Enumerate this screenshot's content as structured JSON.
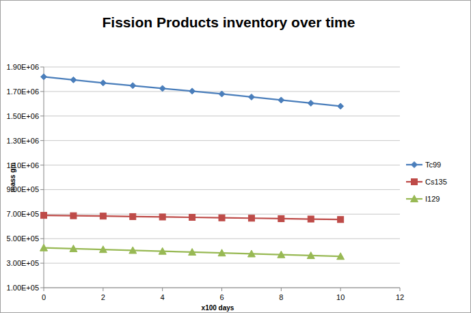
{
  "chart_data": {
    "type": "line",
    "title": "Fission Products inventory over time",
    "x_label": "x100 days",
    "y_label": "mass gm",
    "x": [
      0,
      1,
      2,
      3,
      4,
      5,
      6,
      7,
      8,
      9,
      10
    ],
    "series": [
      {
        "name": "Tc99",
        "color": "#4a7ebb",
        "marker": "diamond",
        "values": [
          1820000,
          1795000,
          1770000,
          1748000,
          1725000,
          1703000,
          1680000,
          1655000,
          1630000,
          1605000,
          1580000
        ]
      },
      {
        "name": "Cs135",
        "color": "#be4b48",
        "marker": "square",
        "values": [
          690000,
          687000,
          684000,
          680000,
          677000,
          674000,
          670000,
          667000,
          663000,
          660000,
          656000
        ]
      },
      {
        "name": "I129",
        "color": "#98b954",
        "marker": "triangle",
        "values": [
          425000,
          418000,
          411000,
          404000,
          397000,
          390000,
          383000,
          376000,
          369000,
          362000,
          355000
        ]
      }
    ],
    "xlim": [
      0,
      12
    ],
    "xticks": [
      0,
      2,
      4,
      6,
      8,
      10,
      12
    ],
    "ylim": [
      100000,
      1900000
    ],
    "yticks": [
      {
        "value": 100000,
        "label": "1.00E+05"
      },
      {
        "value": 300000,
        "label": "3.00E+05"
      },
      {
        "value": 500000,
        "label": "5.00E+05"
      },
      {
        "value": 700000,
        "label": "7.00E+05"
      },
      {
        "value": 900000,
        "label": "9.00E+05"
      },
      {
        "value": 1100000,
        "label": "1.10E+06"
      },
      {
        "value": 1300000,
        "label": "1.30E+06"
      },
      {
        "value": 1500000,
        "label": "1.50E+06"
      },
      {
        "value": 1700000,
        "label": "1.70E+06"
      },
      {
        "value": 1900000,
        "label": "1.90E+06"
      }
    ],
    "grid": true,
    "legend": "right"
  }
}
